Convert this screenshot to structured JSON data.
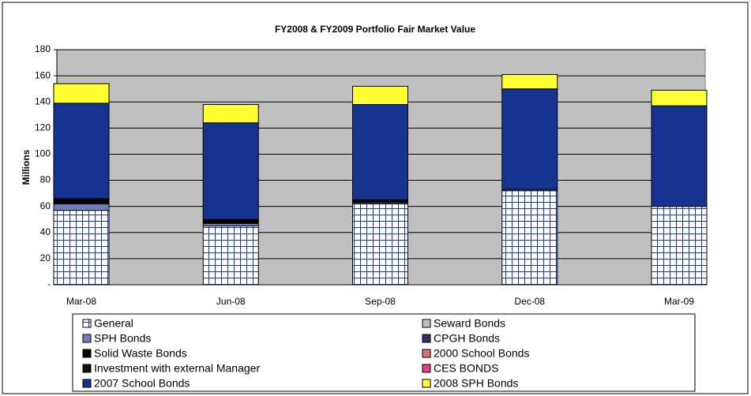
{
  "chart_data": {
    "type": "stacked_bar",
    "title": "FY2008 & FY2009 Portfolio Fair Market Value",
    "y_label": "Millions",
    "categories": [
      "Mar-08",
      "Jun-08",
      "Sep-08",
      "Dec-08",
      "Mar-09"
    ],
    "series": [
      {
        "name": "General",
        "color": "#ffffff",
        "pattern": "grid",
        "pattern_color": "#1f3a93",
        "values": [
          57,
          45,
          62,
          72,
          60
        ]
      },
      {
        "name": "Seward Bonds",
        "color": "#c0c0c0",
        "values": [
          0,
          0,
          0,
          0,
          0
        ]
      },
      {
        "name": "SPH Bonds",
        "color": "#6f7fb8",
        "values": [
          5,
          2,
          1,
          1,
          0
        ]
      },
      {
        "name": "CPGH Bonds",
        "color": "#333366",
        "values": [
          0,
          0,
          0,
          0,
          0
        ]
      },
      {
        "name": "Solid Waste Bonds",
        "color": "#000000",
        "values": [
          3,
          3,
          2,
          0,
          0
        ]
      },
      {
        "name": "2000 School Bonds",
        "color": "#e07070",
        "values": [
          0,
          0,
          0,
          0,
          0
        ]
      },
      {
        "name": "Investment with external Manager",
        "color": "#111111",
        "values": [
          1,
          0,
          0,
          0,
          0
        ]
      },
      {
        "name": "CES BONDS",
        "color": "#e0457a",
        "values": [
          0,
          0,
          0,
          0,
          0
        ]
      },
      {
        "name": "2007 School Bonds",
        "color": "#16338f",
        "values": [
          73,
          74,
          73,
          77,
          77
        ]
      },
      {
        "name": "2008 SPH Bonds",
        "color": "#ffff33",
        "values": [
          15,
          14,
          14,
          11,
          12
        ]
      }
    ],
    "ylim": [
      0,
      180
    ],
    "yticks": [
      {
        "value": 0,
        "label": "-"
      },
      20,
      40,
      60,
      80,
      100,
      120,
      140,
      160,
      180
    ],
    "grid": true,
    "plot_color": "#c0c0c0"
  }
}
